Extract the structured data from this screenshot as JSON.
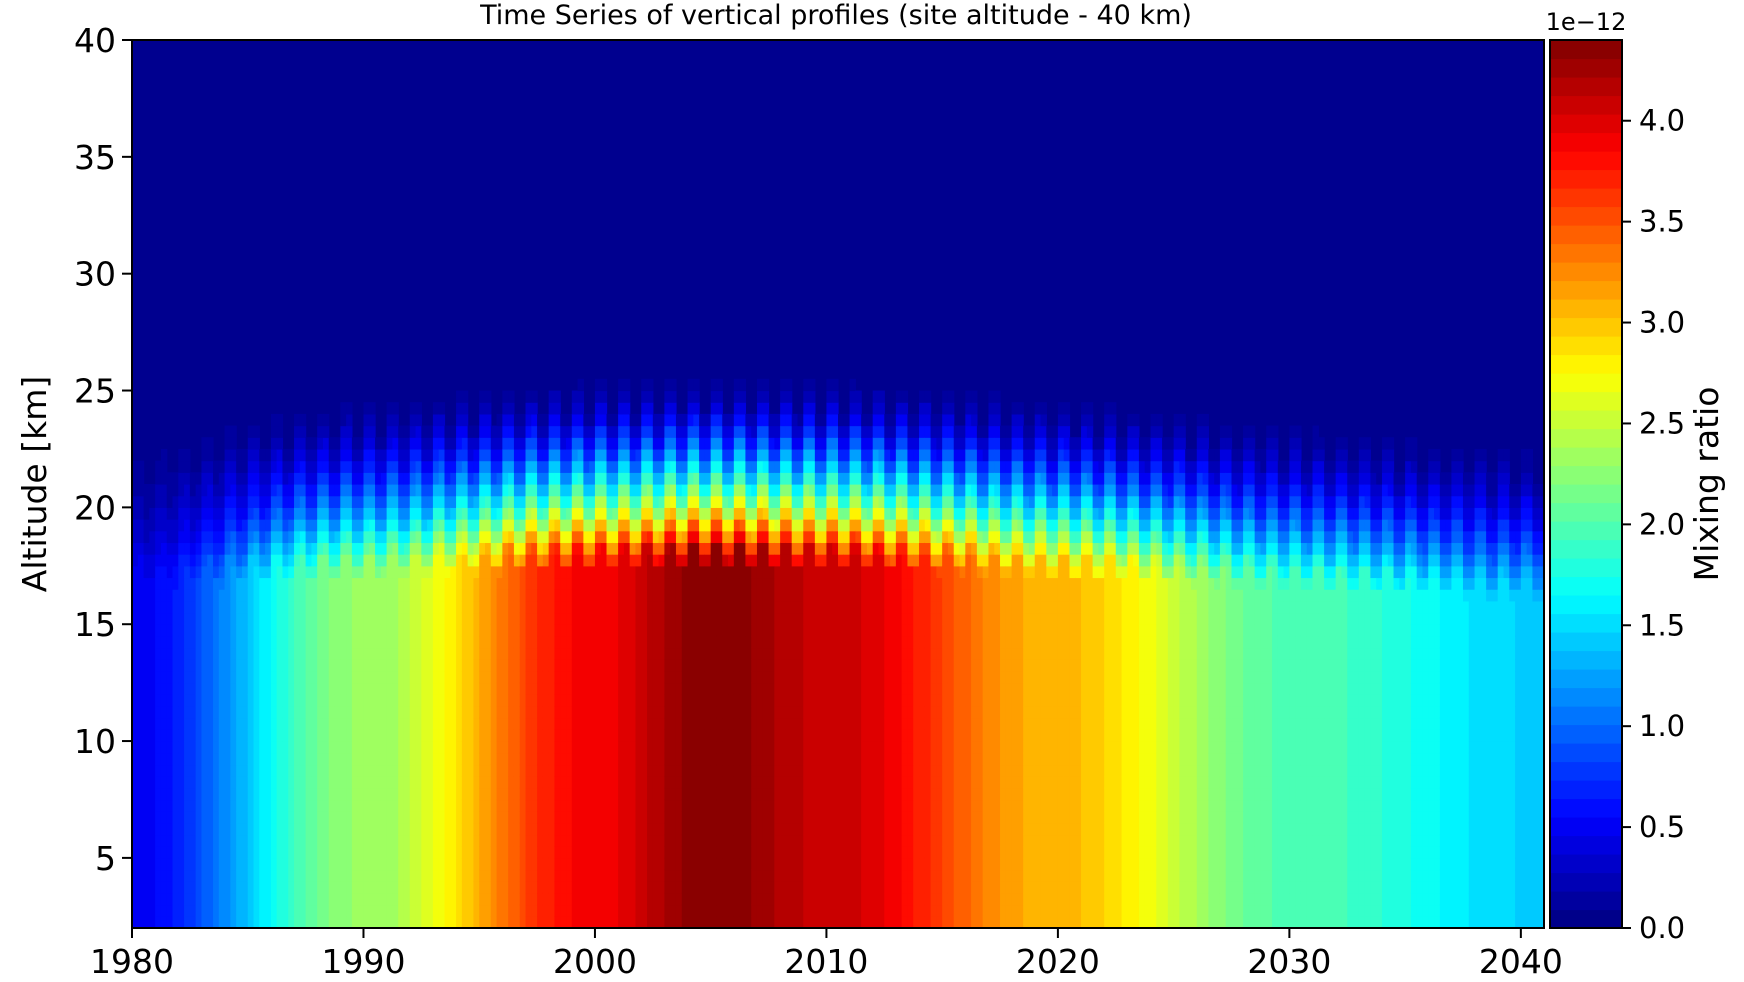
{
  "chart_data": {
    "type": "heatmap",
    "title": "Time Series of vertical profiles (site altitude - 40 km)",
    "xlabel": "",
    "ylabel": "Altitude [km]",
    "xlim": [
      1980,
      2041
    ],
    "ylim": [
      2,
      40
    ],
    "xticks": [
      "1980",
      "1990",
      "2000",
      "2010",
      "2020",
      "2030",
      "2040"
    ],
    "yticks": [
      "5",
      "10",
      "15",
      "20",
      "25",
      "30",
      "35",
      "40"
    ],
    "colorbar": {
      "label": "Mixing ratio",
      "offset_text": "1e−12",
      "range": [
        0.0,
        4.4
      ],
      "scale_factor": 1e-12,
      "colormap": "jet",
      "levels": 48,
      "ticks": [
        "0.0",
        "0.5",
        "1.0",
        "1.5",
        "2.0",
        "2.5",
        "3.0",
        "3.5",
        "4.0"
      ]
    },
    "field": {
      "description_values": "mixing ratio in units of 1e-12",
      "peak_year": 2005,
      "peak_value": 4.4,
      "value_at_1980": 0.5,
      "value_at_2041": 1.45,
      "uniform_below_km": 16,
      "falls_to_zero_km": [
        22,
        25.5
      ],
      "seasonal_oscillation": true
    },
    "profile_samples": [
      {
        "year": 1980,
        "value_below_16km": 0.5
      },
      {
        "year": 1990,
        "value_below_16km": 2.3
      },
      {
        "year": 2000,
        "value_below_16km": 3.9
      },
      {
        "year": 2005,
        "value_below_16km": 4.4
      },
      {
        "year": 2010,
        "value_below_16km": 4.1
      },
      {
        "year": 2020,
        "value_below_16km": 3.05
      },
      {
        "year": 2030,
        "value_below_16km": 2.0
      },
      {
        "year": 2041,
        "value_below_16km": 1.45
      }
    ]
  }
}
